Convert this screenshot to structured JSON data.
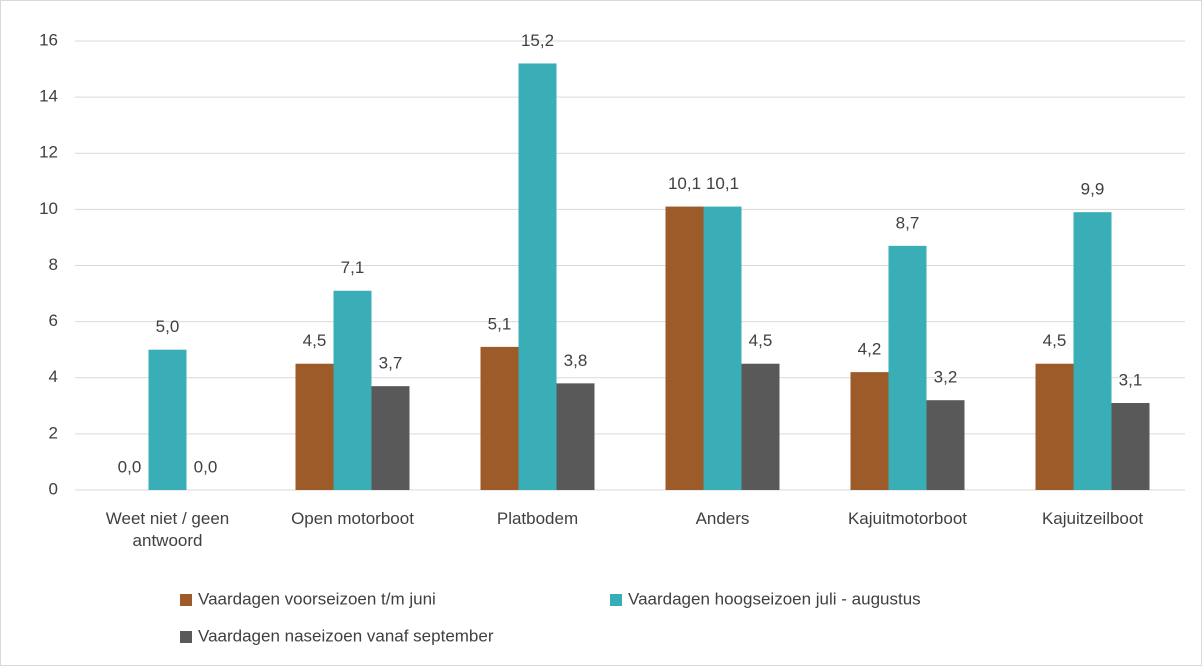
{
  "chart_data": {
    "type": "bar",
    "categories": [
      "Weet niet / geen antwoord",
      "Open motorboot",
      "Platbodem",
      "Anders",
      "Kajuitmotorboot",
      "Kajuitzeilboot"
    ],
    "series": [
      {
        "name": "Vaardagen voorseizoen t/m juni",
        "color": "#9c5b29",
        "values": [
          0.0,
          4.5,
          5.1,
          10.1,
          4.2,
          4.5
        ],
        "value_labels": [
          "0,0",
          "4,5",
          "5,1",
          "10,1",
          "4,2",
          "4,5"
        ]
      },
      {
        "name": "Vaardagen hoogseizoen juli - augustus",
        "color": "#3aaeb6",
        "values": [
          5.0,
          7.1,
          15.2,
          10.1,
          8.7,
          9.9
        ],
        "value_labels": [
          "5,0",
          "7,1",
          "15,2",
          "10,1",
          "8,7",
          "9,9"
        ]
      },
      {
        "name": "Vaardagen naseizoen vanaf september",
        "color": "#595959",
        "values": [
          0.0,
          3.7,
          3.8,
          4.5,
          3.2,
          3.1
        ],
        "value_labels": [
          "0,0",
          "3,7",
          "3,8",
          "4,5",
          "3,2",
          "3,1"
        ]
      }
    ],
    "ylim": [
      0,
      16
    ],
    "yticks": [
      0,
      2,
      4,
      6,
      8,
      10,
      12,
      14,
      16
    ],
    "grid": true,
    "legend": "bottom"
  }
}
